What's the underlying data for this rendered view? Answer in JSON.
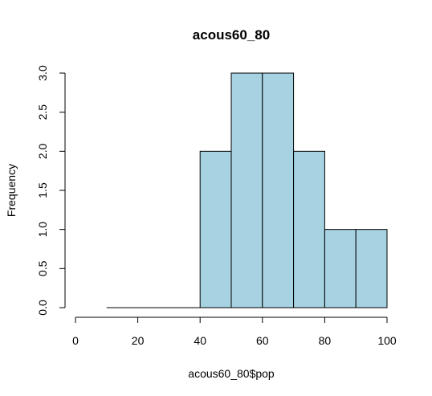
{
  "chart_data": {
    "type": "bar",
    "title": "acous60_80",
    "xlabel": "acous60_80$pop",
    "ylabel": "Frequency",
    "bins": [
      {
        "from": 10,
        "to": 20,
        "count": 0
      },
      {
        "from": 20,
        "to": 30,
        "count": 0
      },
      {
        "from": 30,
        "to": 40,
        "count": 0
      },
      {
        "from": 40,
        "to": 50,
        "count": 2
      },
      {
        "from": 50,
        "to": 60,
        "count": 3
      },
      {
        "from": 60,
        "to": 70,
        "count": 3
      },
      {
        "from": 70,
        "to": 80,
        "count": 2
      },
      {
        "from": 80,
        "to": 90,
        "count": 1
      },
      {
        "from": 90,
        "to": 100,
        "count": 1
      }
    ],
    "xlim": [
      0,
      100
    ],
    "ylim": [
      0,
      3
    ],
    "xticks": [
      "0",
      "20",
      "40",
      "60",
      "80",
      "100"
    ],
    "yticks": [
      "0.0",
      "0.5",
      "1.0",
      "1.5",
      "2.0",
      "2.5",
      "3.0"
    ],
    "bar_color": "#a6d2e2",
    "grid": false
  }
}
